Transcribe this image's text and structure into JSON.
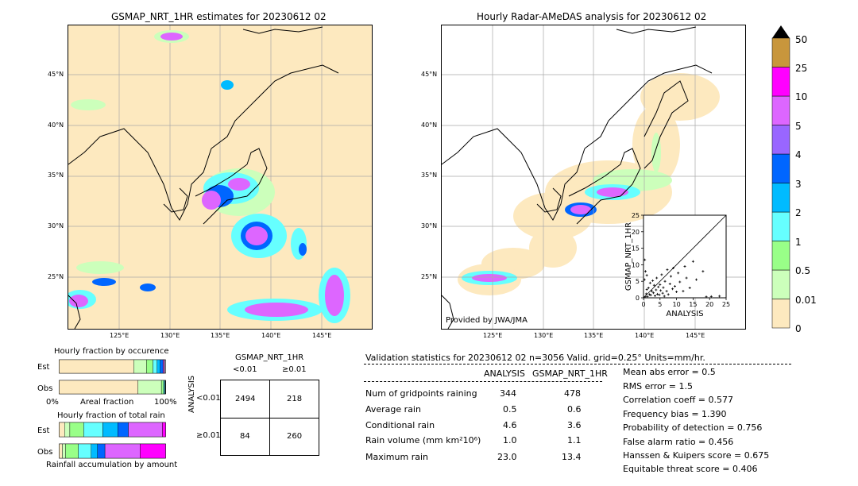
{
  "left_map": {
    "title": "GSMAP_NRT_1HR estimates for 20230612 02",
    "lat_labels": [
      "45°N",
      "40°N",
      "35°N",
      "30°N",
      "25°N"
    ],
    "lon_labels": [
      "125°E",
      "130°E",
      "135°E",
      "140°E",
      "145°E"
    ]
  },
  "right_map": {
    "title": "Hourly Radar-AMeDAS analysis for 20230612 02",
    "lat_labels": [
      "45°N",
      "40°N",
      "35°N",
      "30°N",
      "25°N"
    ],
    "lon_labels": [
      "125°E",
      "130°E",
      "135°E",
      "140°E",
      "145°E"
    ],
    "credit": "Provided by JWA/JMA"
  },
  "colorbar": {
    "labels": [
      "50",
      "25",
      "10",
      "5",
      "4",
      "3",
      "2",
      "1",
      "0.5",
      "0.01",
      "0"
    ],
    "colors": [
      "#c8963c",
      "#ff00ff",
      "#dd66ff",
      "#9966ff",
      "#0066ff",
      "#00bbff",
      "#66ffff",
      "#99ff88",
      "#ccffbb",
      "#fde9bf"
    ]
  },
  "chart_data": [
    {
      "type": "scatter",
      "xlabel": "ANALYSIS",
      "ylabel": "GSMAP_NRT_1HR",
      "xlim": [
        0,
        25
      ],
      "ylim": [
        0,
        25
      ],
      "xticks": [
        "0",
        "5",
        "10",
        "15",
        "20",
        "25"
      ],
      "yticks": [
        "0",
        "5",
        "10",
        "15",
        "20",
        "25"
      ],
      "points": [
        [
          0.5,
          0.3
        ],
        [
          0.8,
          1.2
        ],
        [
          1.0,
          2.5
        ],
        [
          1.2,
          0.4
        ],
        [
          1.5,
          3.0
        ],
        [
          1.8,
          1.0
        ],
        [
          2.0,
          4.5
        ],
        [
          2.2,
          0.8
        ],
        [
          2.5,
          2.0
        ],
        [
          2.8,
          5.2
        ],
        [
          3.0,
          1.5
        ],
        [
          3.2,
          3.8
        ],
        [
          3.5,
          0.6
        ],
        [
          3.8,
          2.4
        ],
        [
          4.0,
          6.0
        ],
        [
          4.2,
          1.1
        ],
        [
          4.5,
          3.3
        ],
        [
          4.8,
          0.9
        ],
        [
          5.0,
          4.0
        ],
        [
          5.2,
          2.2
        ],
        [
          5.5,
          7.0
        ],
        [
          5.8,
          1.4
        ],
        [
          6.0,
          3.1
        ],
        [
          6.3,
          0.5
        ],
        [
          6.5,
          5.0
        ],
        [
          7.0,
          2.0
        ],
        [
          7.2,
          8.5
        ],
        [
          7.5,
          1.0
        ],
        [
          8.0,
          4.2
        ],
        [
          8.3,
          6.5
        ],
        [
          8.8,
          2.7
        ],
        [
          9.0,
          9.0
        ],
        [
          9.5,
          3.5
        ],
        [
          10.0,
          1.8
        ],
        [
          10.5,
          7.5
        ],
        [
          11.0,
          4.8
        ],
        [
          12.0,
          2.0
        ],
        [
          12.5,
          9.5
        ],
        [
          13.0,
          6.0
        ],
        [
          14.0,
          3.0
        ],
        [
          15.0,
          11.0
        ],
        [
          16.0,
          5.5
        ],
        [
          18.0,
          8.0
        ],
        [
          19.0,
          0.3
        ],
        [
          20.5,
          0.4
        ],
        [
          23.0,
          0.5
        ],
        [
          0.3,
          5.5
        ],
        [
          0.6,
          8.0
        ],
        [
          0.4,
          11.5
        ],
        [
          1.0,
          6.8
        ]
      ]
    },
    {
      "type": "bar",
      "title": "Hourly fraction by occurence",
      "categories": [
        "Est",
        "Obs"
      ],
      "xlabel": "Areal fraction",
      "xticks": [
        "0%",
        "100%"
      ],
      "series": [
        {
          "values": [
            0.7,
            0.74
          ]
        },
        {
          "values": [
            0.12,
            0.22
          ]
        },
        {
          "values": [
            0.06,
            0.02
          ]
        },
        {
          "values": [
            0.04,
            0.01
          ]
        },
        {
          "values": [
            0.03,
            0.005
          ]
        },
        {
          "values": [
            0.025,
            0.003
          ]
        },
        {
          "values": [
            0.01,
            0.002
          ]
        },
        {
          "values": [
            0.005,
            0.0
          ]
        }
      ]
    },
    {
      "type": "bar",
      "title": "Hourly fraction of total rain",
      "categories": [
        "Est",
        "Obs"
      ],
      "xlabel": "Rainfall accumulation by amount",
      "series": [
        {
          "values": [
            0.05,
            0.03
          ]
        },
        {
          "values": [
            0.05,
            0.03
          ]
        },
        {
          "values": [
            0.13,
            0.12
          ]
        },
        {
          "values": [
            0.18,
            0.12
          ]
        },
        {
          "values": [
            0.14,
            0.06
          ]
        },
        {
          "values": [
            0.1,
            0.07
          ]
        },
        {
          "values": [
            0.32,
            0.33
          ]
        },
        {
          "values": [
            0.03,
            0.24
          ]
        }
      ]
    },
    {
      "type": "table",
      "title": "GSMAP_NRT_1HR",
      "col_headers": [
        "<0.01",
        "≥0.01"
      ],
      "row_axis_label": "ANALYSIS",
      "row_headers": [
        "<0.01",
        "≥0.01"
      ],
      "cells": [
        [
          "2494",
          "218"
        ],
        [
          "84",
          "260"
        ]
      ]
    }
  ],
  "validation": {
    "header": "Validation statistics for 20230612 02  n=3056 Valid. grid=0.25° Units=mm/hr.",
    "col1": "ANALYSIS",
    "col2": "GSMAP_NRT_1HR",
    "rows": [
      {
        "label": "Num of gridpoints raining",
        "a": "344",
        "b": "478"
      },
      {
        "label": "Average rain",
        "a": "0.5",
        "b": "0.6"
      },
      {
        "label": "Conditional rain",
        "a": "4.6",
        "b": "3.6"
      },
      {
        "label": "Rain volume (mm km²10⁶)",
        "a": "1.0",
        "b": "1.1"
      },
      {
        "label": "Maximum rain",
        "a": "23.0",
        "b": "13.4"
      }
    ],
    "scores": [
      "Mean abs error =    0.5",
      "RMS error =    1.5",
      "Correlation coeff =  0.577",
      "Frequency bias =  1.390",
      "Probability of detection =  0.756",
      "False alarm ratio =  0.456",
      "Hanssen & Kuipers score =  0.675",
      "Equitable threat score =  0.406"
    ]
  }
}
